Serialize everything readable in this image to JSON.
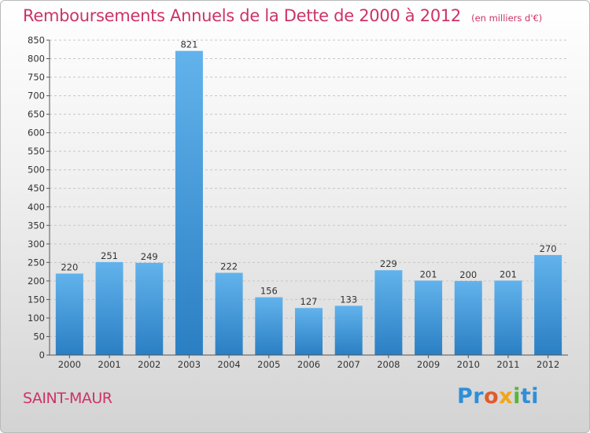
{
  "title": "Remboursements Annuels de la Dette de 2000 à 2012",
  "unit": "(en milliers d'€)",
  "place": "SAINT-MAUR",
  "logo": {
    "p1": "Pr",
    "p2": "o",
    "p3": "x",
    "p4": "i",
    "p5": "ti"
  },
  "colors": {
    "title": "#cc3366",
    "bar_top": "#62b3ec",
    "bar_bottom": "#2a7fc3"
  },
  "chart_data": {
    "type": "bar",
    "title": "Remboursements Annuels de la Dette de 2000 à 2012",
    "xlabel": "",
    "ylabel": "",
    "categories": [
      "2000",
      "2001",
      "2002",
      "2003",
      "2004",
      "2005",
      "2006",
      "2007",
      "2008",
      "2009",
      "2010",
      "2011",
      "2012"
    ],
    "values": [
      220,
      251,
      249,
      821,
      222,
      156,
      127,
      133,
      229,
      201,
      200,
      201,
      270
    ],
    "ylim": [
      0,
      850
    ],
    "yticks": [
      0,
      50,
      100,
      150,
      200,
      250,
      300,
      350,
      400,
      450,
      500,
      550,
      600,
      650,
      700,
      750,
      800,
      850
    ],
    "grid": true,
    "legend": "none"
  }
}
